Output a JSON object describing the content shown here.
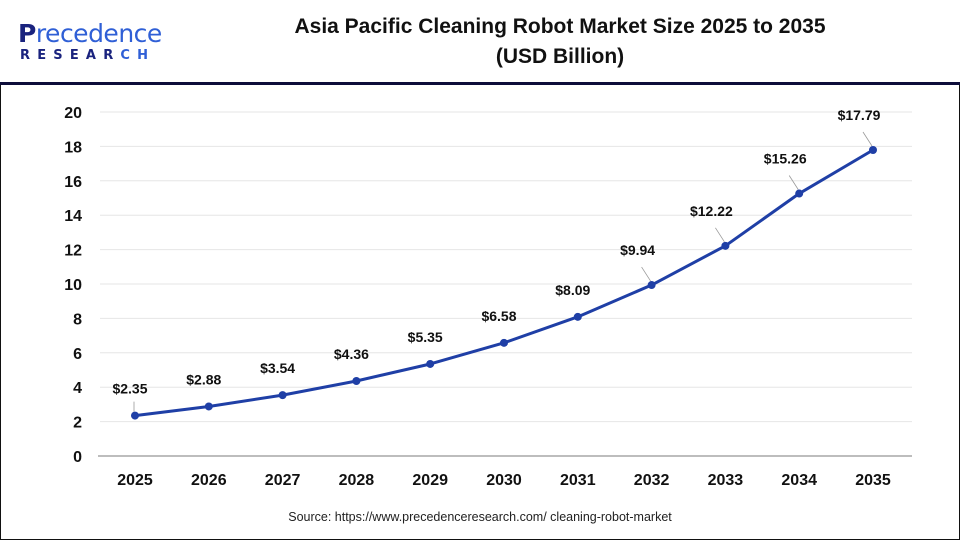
{
  "header": {
    "logo": {
      "line1_dark": "P",
      "line1_rest": "recedence",
      "line2_dark": "RESEAR",
      "line2_blue": "CH"
    },
    "title_line1": "Asia Pacific Cleaning Robot Market Size 2025 to 2035",
    "title_line2": "(USD Billion)"
  },
  "footer": {
    "source": "Source: https://www.precedenceresearch.com/ cleaning-robot-market"
  },
  "colors": {
    "line": "#1f3fa6",
    "marker": "#1f3fa6",
    "grid": "#e6e6e6",
    "axis": "#bdbdbd",
    "header_rule": "#0d0d3a",
    "logo_dark": "#1a237e",
    "logo_blue": "#2f5fd6"
  },
  "chart_data": {
    "type": "line",
    "title": "Asia Pacific Cleaning Robot Market Size 2025 to 2035 (USD Billion)",
    "xlabel": "",
    "ylabel": "",
    "categories": [
      "2025",
      "2026",
      "2027",
      "2028",
      "2029",
      "2030",
      "2031",
      "2032",
      "2033",
      "2034",
      "2035"
    ],
    "series": [
      {
        "name": "Market Size (USD Billion)",
        "values": [
          2.35,
          2.88,
          3.54,
          4.36,
          5.35,
          6.58,
          8.09,
          9.94,
          12.22,
          15.26,
          17.79
        ],
        "labels": [
          "$2.35",
          "$2.88",
          "$3.54",
          "$4.36",
          "$5.35",
          "$6.58",
          "$8.09",
          "$9.94",
          "$12.22",
          "$15.26",
          "$17.79"
        ]
      }
    ],
    "ylim": [
      0,
      20
    ],
    "yticks": [
      0,
      2,
      4,
      6,
      8,
      10,
      12,
      14,
      16,
      18,
      20
    ],
    "grid": true,
    "legend": "none"
  }
}
